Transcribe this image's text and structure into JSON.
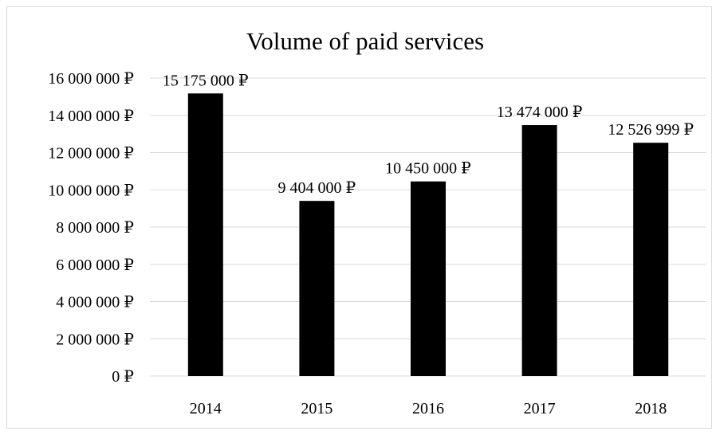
{
  "chart_data": {
    "type": "bar",
    "title": "Volume of paid services",
    "xlabel": "",
    "ylabel": "",
    "categories": [
      "2014",
      "2015",
      "2016",
      "2017",
      "2018"
    ],
    "values": [
      15175000,
      9404000,
      10450000,
      13474000,
      12526999
    ],
    "data_labels": [
      "15 175 000 ₽",
      "9 404 000 ₽",
      "10 450 000 ₽",
      "13 474 000 ₽",
      "12 526 999 ₽"
    ],
    "ylim": [
      0,
      16000000
    ],
    "y_ticks": [
      0,
      2000000,
      4000000,
      6000000,
      8000000,
      10000000,
      12000000,
      14000000,
      16000000
    ],
    "y_tick_labels": [
      "0 ₽",
      "2 000 000 ₽",
      "4 000 000 ₽",
      "6 000 000 ₽",
      "8 000 000 ₽",
      "10 000 000 ₽",
      "12 000 000 ₽",
      "14 000 000 ₽",
      "16 000 000 ₽"
    ],
    "bar_color": "#000000",
    "grid_color": "#d9d9d9",
    "grid": true,
    "legend": "none"
  }
}
